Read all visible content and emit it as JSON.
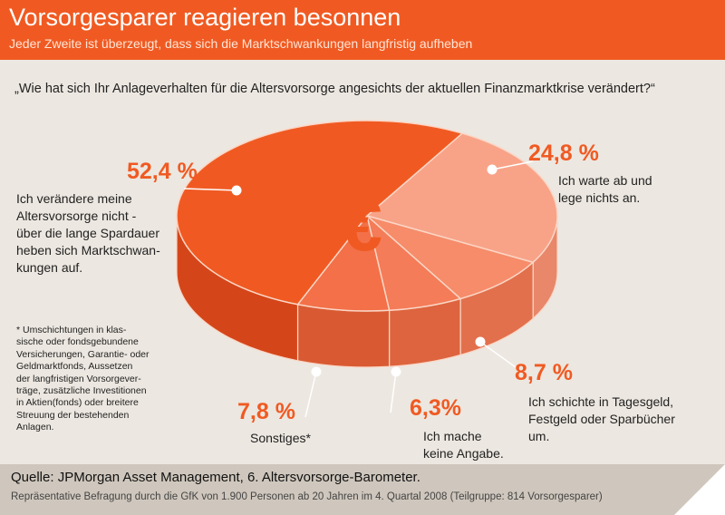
{
  "header": {
    "title": "Vorsorgesparer reagieren besonnen",
    "subtitle": "Jeder Zweite ist überzeugt, dass sich die Marktschwankungen langfristig aufheben"
  },
  "question": "„Wie hat sich Ihr Anlageverhalten für die Altersvorsorge angesichts der aktuellen Finanzmarktkrise verändert?“",
  "center_symbol": "€",
  "chart_data": {
    "type": "pie",
    "title": "„Wie hat sich Ihr Anlageverhalten für die Altersvorsorge angesichts der aktuellen Finanzmarktkrise verändert?“",
    "slices": [
      {
        "pct_label": "24,8 %",
        "value": 24.8,
        "label": "Ich warte ab und\nlege nichts an.",
        "color": "#f8a388",
        "side": "#e8876a"
      },
      {
        "pct_label": "8,7 %",
        "value": 8.7,
        "label": "Ich schichte in Tagesgeld,\nFestgeld oder Sparbücher\num.",
        "color": "#f68c6a",
        "side": "#e2704c"
      },
      {
        "pct_label": "6,3%",
        "value": 6.3,
        "label": "Ich mache\nkeine Angabe.",
        "color": "#f47c58",
        "side": "#dd643e"
      },
      {
        "pct_label": "7,8 %",
        "value": 7.8,
        "label": "Sonstiges*",
        "color": "#f37048",
        "side": "#d95a32"
      },
      {
        "pct_label": "52,4 %",
        "value": 52.4,
        "label": "Ich verändere meine\nAltersvorsorge nicht -\nüber die lange Spardauer\nheben sich Marktschwan-\nkungen auf.",
        "color": "#f05a22",
        "side": "#d4461a"
      }
    ]
  },
  "footnote": "* Umschichtungen in klas-\nsische oder fondsgebundene\nVersicherungen, Garantie- oder\nGeldmarktfonds, Aussetzen\nder langfristigen Vorsorgever-\nträge, zusätzliche Investitionen\nin Aktien(fonds) oder breitere\nStreuung der bestehenden\nAnlagen.",
  "footer": {
    "source": "Quelle: JPMorgan Asset Management, 6. Altersvorsorge-Barometer.",
    "detail": "Repräsentative Befragung durch die GfK von 1.900 Personen ab 20 Jahren im 4. Quartal 2008 (Teilgruppe: 814 Vorsorgesparer)"
  }
}
